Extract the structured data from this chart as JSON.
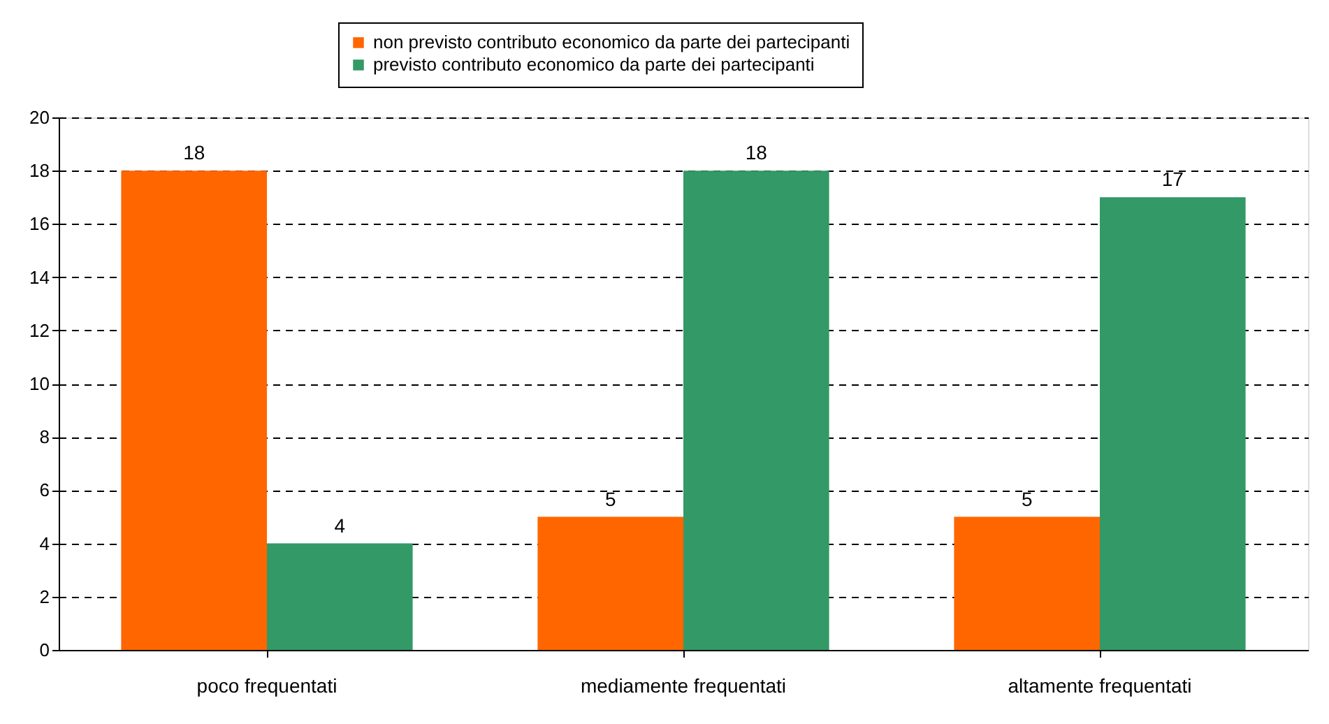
{
  "chart_data": {
    "type": "bar",
    "categories": [
      "poco frequentati",
      "mediamente frequentati",
      "altamente frequentati"
    ],
    "series": [
      {
        "name": "non previsto contributo economico da parte dei partecipanti",
        "color": "#ff6600",
        "values": [
          18,
          5,
          5
        ]
      },
      {
        "name": "previsto contributo economico da parte dei partecipanti",
        "color": "#339966",
        "values": [
          4,
          18,
          17
        ]
      }
    ],
    "ylim": [
      0,
      20
    ],
    "yticks": [
      0,
      2,
      4,
      6,
      8,
      10,
      12,
      14,
      16,
      18,
      20
    ],
    "grid": "y",
    "legend": "top",
    "data_labels": true
  }
}
